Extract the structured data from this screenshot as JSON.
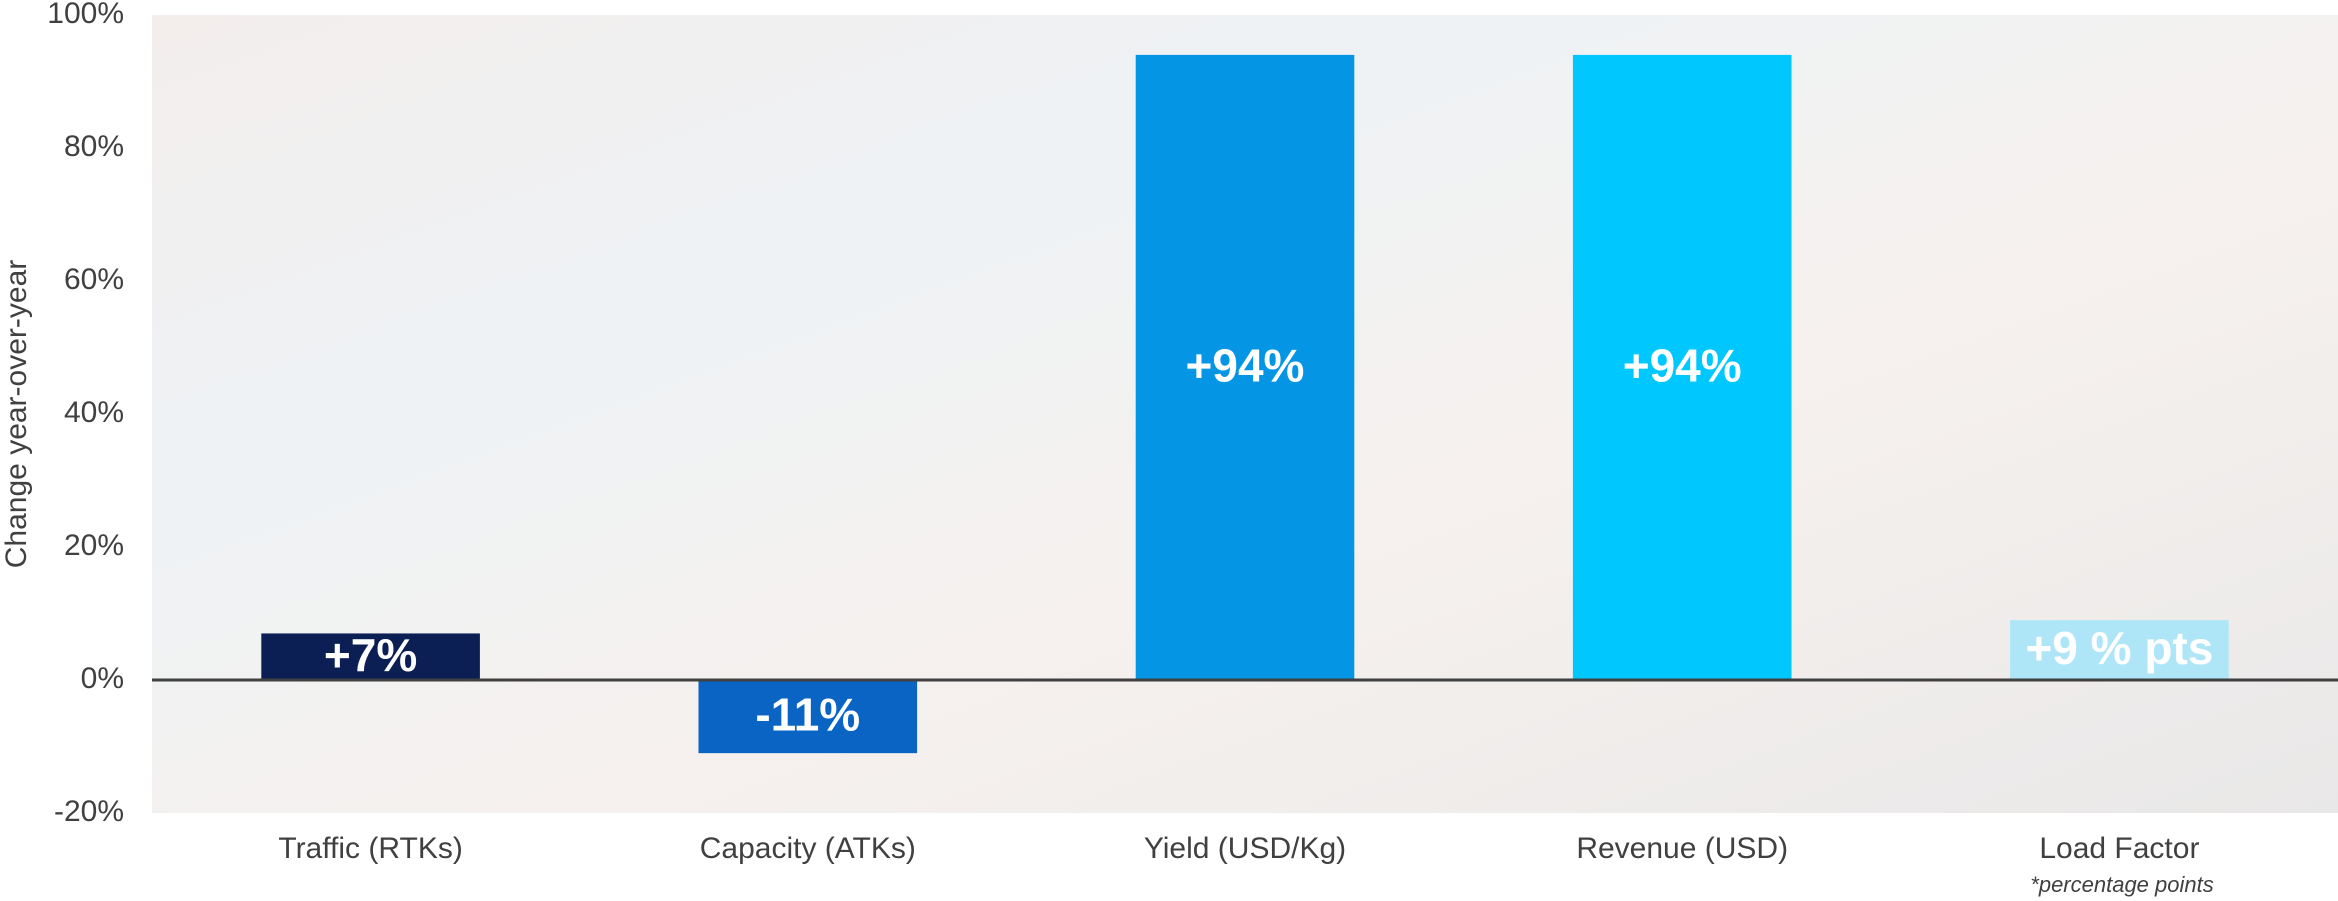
{
  "chart_data": {
    "type": "bar",
    "y_label": "Change year-over-year",
    "categories": [
      "Traffic (RTKs)",
      "Capacity (ATKs)",
      "Yield (USD/Kg)",
      "Revenue (USD)",
      "Load Factor"
    ],
    "values": [
      7,
      -11,
      94,
      94,
      9
    ],
    "value_labels": [
      "+7%",
      "-11%",
      "+94%",
      "+94%",
      "+9 % pts"
    ],
    "colors": [
      "#0b1f55",
      "#0a64c4",
      "#0496e4",
      "#00c8ff",
      "#aee6f8"
    ],
    "ylim": [
      -20,
      100
    ],
    "yticks": [
      {
        "value": -20,
        "label": "-20%"
      },
      {
        "value": 0,
        "label": "0%"
      },
      {
        "value": 20,
        "label": "20%"
      },
      {
        "value": 40,
        "label": "40%"
      },
      {
        "value": 60,
        "label": "60%"
      },
      {
        "value": 80,
        "label": "80%"
      },
      {
        "value": 100,
        "label": "100%"
      }
    ],
    "footnote": "*percentage points",
    "grid": false
  }
}
